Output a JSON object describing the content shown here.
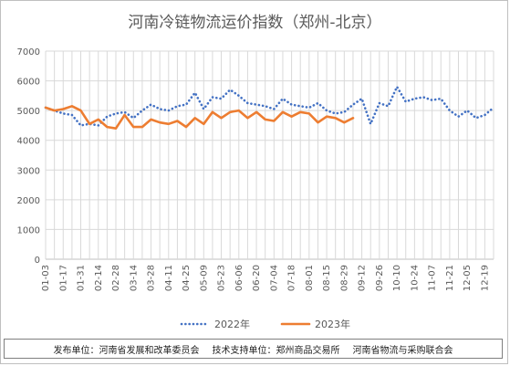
{
  "chart_data": {
    "type": "line",
    "title": "河南冷链物流运价指数（郑州-北京）",
    "ylim": [
      0,
      7000
    ],
    "yticks": [
      0,
      1000,
      2000,
      3000,
      4000,
      5000,
      6000,
      7000
    ],
    "xticks": [
      "01-03",
      "01-17",
      "01-31",
      "02-14",
      "02-28",
      "03-14",
      "03-28",
      "04-11",
      "04-25",
      "05-09",
      "05-23",
      "06-06",
      "06-20",
      "07-04",
      "07-18",
      "08-01",
      "08-15",
      "08-29",
      "09-12",
      "09-26",
      "10-10",
      "10-24",
      "11-07",
      "11-21",
      "12-05",
      "12-19"
    ],
    "grid": true,
    "legend_position": "bottom",
    "series": [
      {
        "name": "2022年",
        "color": "#4472c4",
        "style": "dotted",
        "values": [
          5100,
          5000,
          4900,
          4850,
          4500,
          4550,
          4500,
          4800,
          4900,
          4950,
          4750,
          5000,
          5200,
          5050,
          5000,
          5150,
          5200,
          5600,
          5050,
          5450,
          5400,
          5700,
          5500,
          5250,
          5200,
          5150,
          5050,
          5400,
          5200,
          5150,
          5100,
          5250,
          5000,
          4900,
          4950,
          5200,
          5400,
          4550,
          5250,
          5150,
          5800,
          5300,
          5400,
          5450,
          5350,
          5400,
          5000,
          4800,
          5000,
          4750,
          4850,
          5100
        ]
      },
      {
        "name": "2023年",
        "color": "#ed7d31",
        "style": "solid",
        "values": [
          5100,
          5000,
          5050,
          5150,
          5000,
          4550,
          4700,
          4450,
          4400,
          4850,
          4450,
          4450,
          4700,
          4600,
          4550,
          4650,
          4450,
          4750,
          4550,
          4950,
          4750,
          4950,
          5000,
          4750,
          4950,
          4700,
          4650,
          4950,
          4800,
          4950,
          4900,
          4600,
          4800,
          4750,
          4600,
          4750
        ]
      }
    ]
  },
  "footer": {
    "publisher": "发布单位：河南省发展和改革委员会",
    "support": "技术支持单位：郑州商品交易所",
    "association": "河南省物流与采购联合会"
  }
}
